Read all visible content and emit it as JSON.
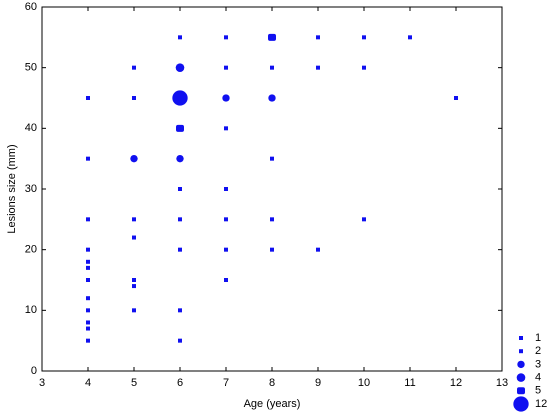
{
  "chart_data": {
    "type": "bubble",
    "x_label": "Age (years)",
    "y_label": "Lesions size (mm)",
    "xlim": [
      3,
      13
    ],
    "xticks": [
      3,
      4,
      5,
      6,
      7,
      8,
      9,
      10,
      11,
      12,
      13
    ],
    "ylim": [
      0,
      60
    ],
    "yticks": [
      0,
      10,
      20,
      30,
      40,
      50,
      60
    ],
    "color": "#1010f0",
    "series": [
      {
        "x": [
          4,
          4,
          4,
          4,
          4,
          4,
          4,
          4,
          4,
          4,
          4,
          4,
          5,
          5,
          5,
          5,
          5,
          5,
          5,
          5,
          6,
          6,
          6,
          6,
          6,
          6,
          6,
          6,
          6,
          6,
          7,
          7,
          7,
          7,
          7,
          7,
          7,
          7,
          8,
          8,
          8,
          8,
          8,
          8,
          9,
          9,
          9,
          10,
          10,
          10,
          11,
          12
        ],
        "y": [
          45,
          35,
          25,
          20,
          18,
          17,
          15,
          12,
          10,
          8,
          7,
          5,
          50,
          45,
          35,
          25,
          22,
          15,
          14,
          10,
          55,
          50,
          45,
          40,
          35,
          30,
          25,
          20,
          10,
          5,
          55,
          50,
          45,
          40,
          30,
          25,
          20,
          15,
          55,
          50,
          45,
          35,
          25,
          20,
          55,
          50,
          20,
          55,
          50,
          25,
          55,
          45
        ],
        "sizes": [
          1,
          1,
          1,
          1,
          1,
          1,
          1,
          1,
          1,
          1,
          1,
          1,
          1,
          1,
          3,
          1,
          1,
          1,
          1,
          1,
          1,
          4,
          12,
          5,
          3,
          1,
          1,
          1,
          1,
          1,
          1,
          1,
          3,
          1,
          1,
          1,
          1,
          1,
          5,
          1,
          3,
          1,
          1,
          1,
          1,
          1,
          1,
          1,
          1,
          1,
          1,
          1
        ]
      }
    ],
    "legend_sizes": [
      1,
      2,
      3,
      4,
      5,
      12
    ]
  }
}
